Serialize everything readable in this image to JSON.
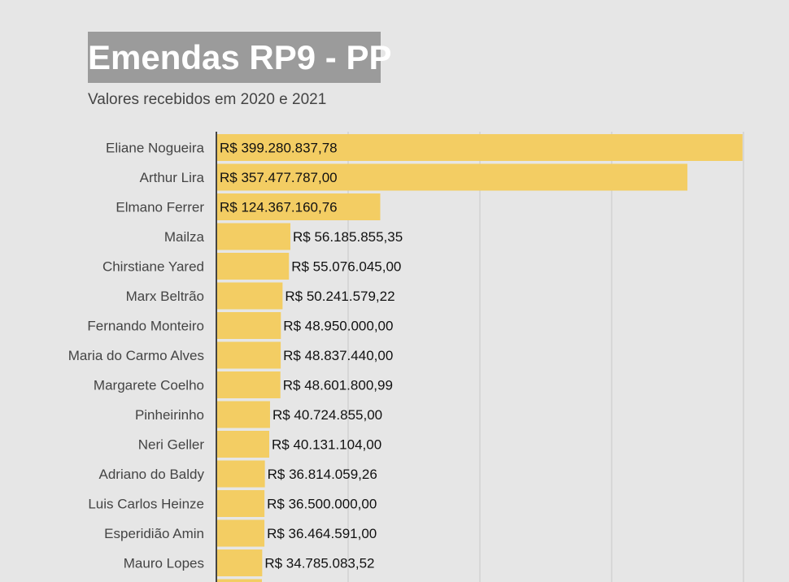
{
  "title": "Emendas RP9 - PP",
  "subtitle": "Valores recebidos em 2020 e 2021",
  "colors": {
    "background": "#e6e6e6",
    "bar": "#f3cd63",
    "title_box": "#9b9b9b",
    "grid": "#c8c8c8",
    "axis": "#444444"
  },
  "chart_data": {
    "type": "bar",
    "orientation": "horizontal",
    "title": "Emendas RP9 - PP",
    "subtitle": "Valores recebidos em 2020 e 2021",
    "xlim": [
      0,
      400000000
    ],
    "grid": true,
    "categories": [
      "Eliane Nogueira",
      "Arthur Lira",
      "Elmano Ferrer",
      "Mailza",
      "Chirstiane Yared",
      "Marx Beltrão",
      "Fernando Monteiro",
      "Maria do Carmo Alves",
      "Margarete Coelho",
      "Pinheirinho",
      "Neri Geller",
      "Adriano do Baldy",
      "Luis Carlos Heinze",
      "Esperidião Amin",
      "Mauro Lopes"
    ],
    "values": [
      399280837.78,
      357477787.0,
      124367160.76,
      56185855.35,
      55076045.0,
      50241579.22,
      48950000.0,
      48837440.0,
      48601800.99,
      40724855.0,
      40131104.0,
      36814059.26,
      36500000.0,
      36464591.0,
      34785083.52
    ],
    "value_labels": [
      "R$ 399.280.837,78",
      "R$ 357.477.787,00",
      "R$ 124.367.160,76",
      "R$ 56.185.855,35",
      "R$ 55.076.045,00",
      "R$ 50.241.579,22",
      "R$ 48.950.000,00",
      "R$ 48.837.440,00",
      "R$ 48.601.800,99",
      "R$ 40.724.855,00",
      "R$ 40.131.104,00",
      "R$ 36.814.059,26",
      "R$ 36.500.000,00",
      "R$ 36.464.591,00",
      "R$ 34.785.083,52"
    ]
  }
}
